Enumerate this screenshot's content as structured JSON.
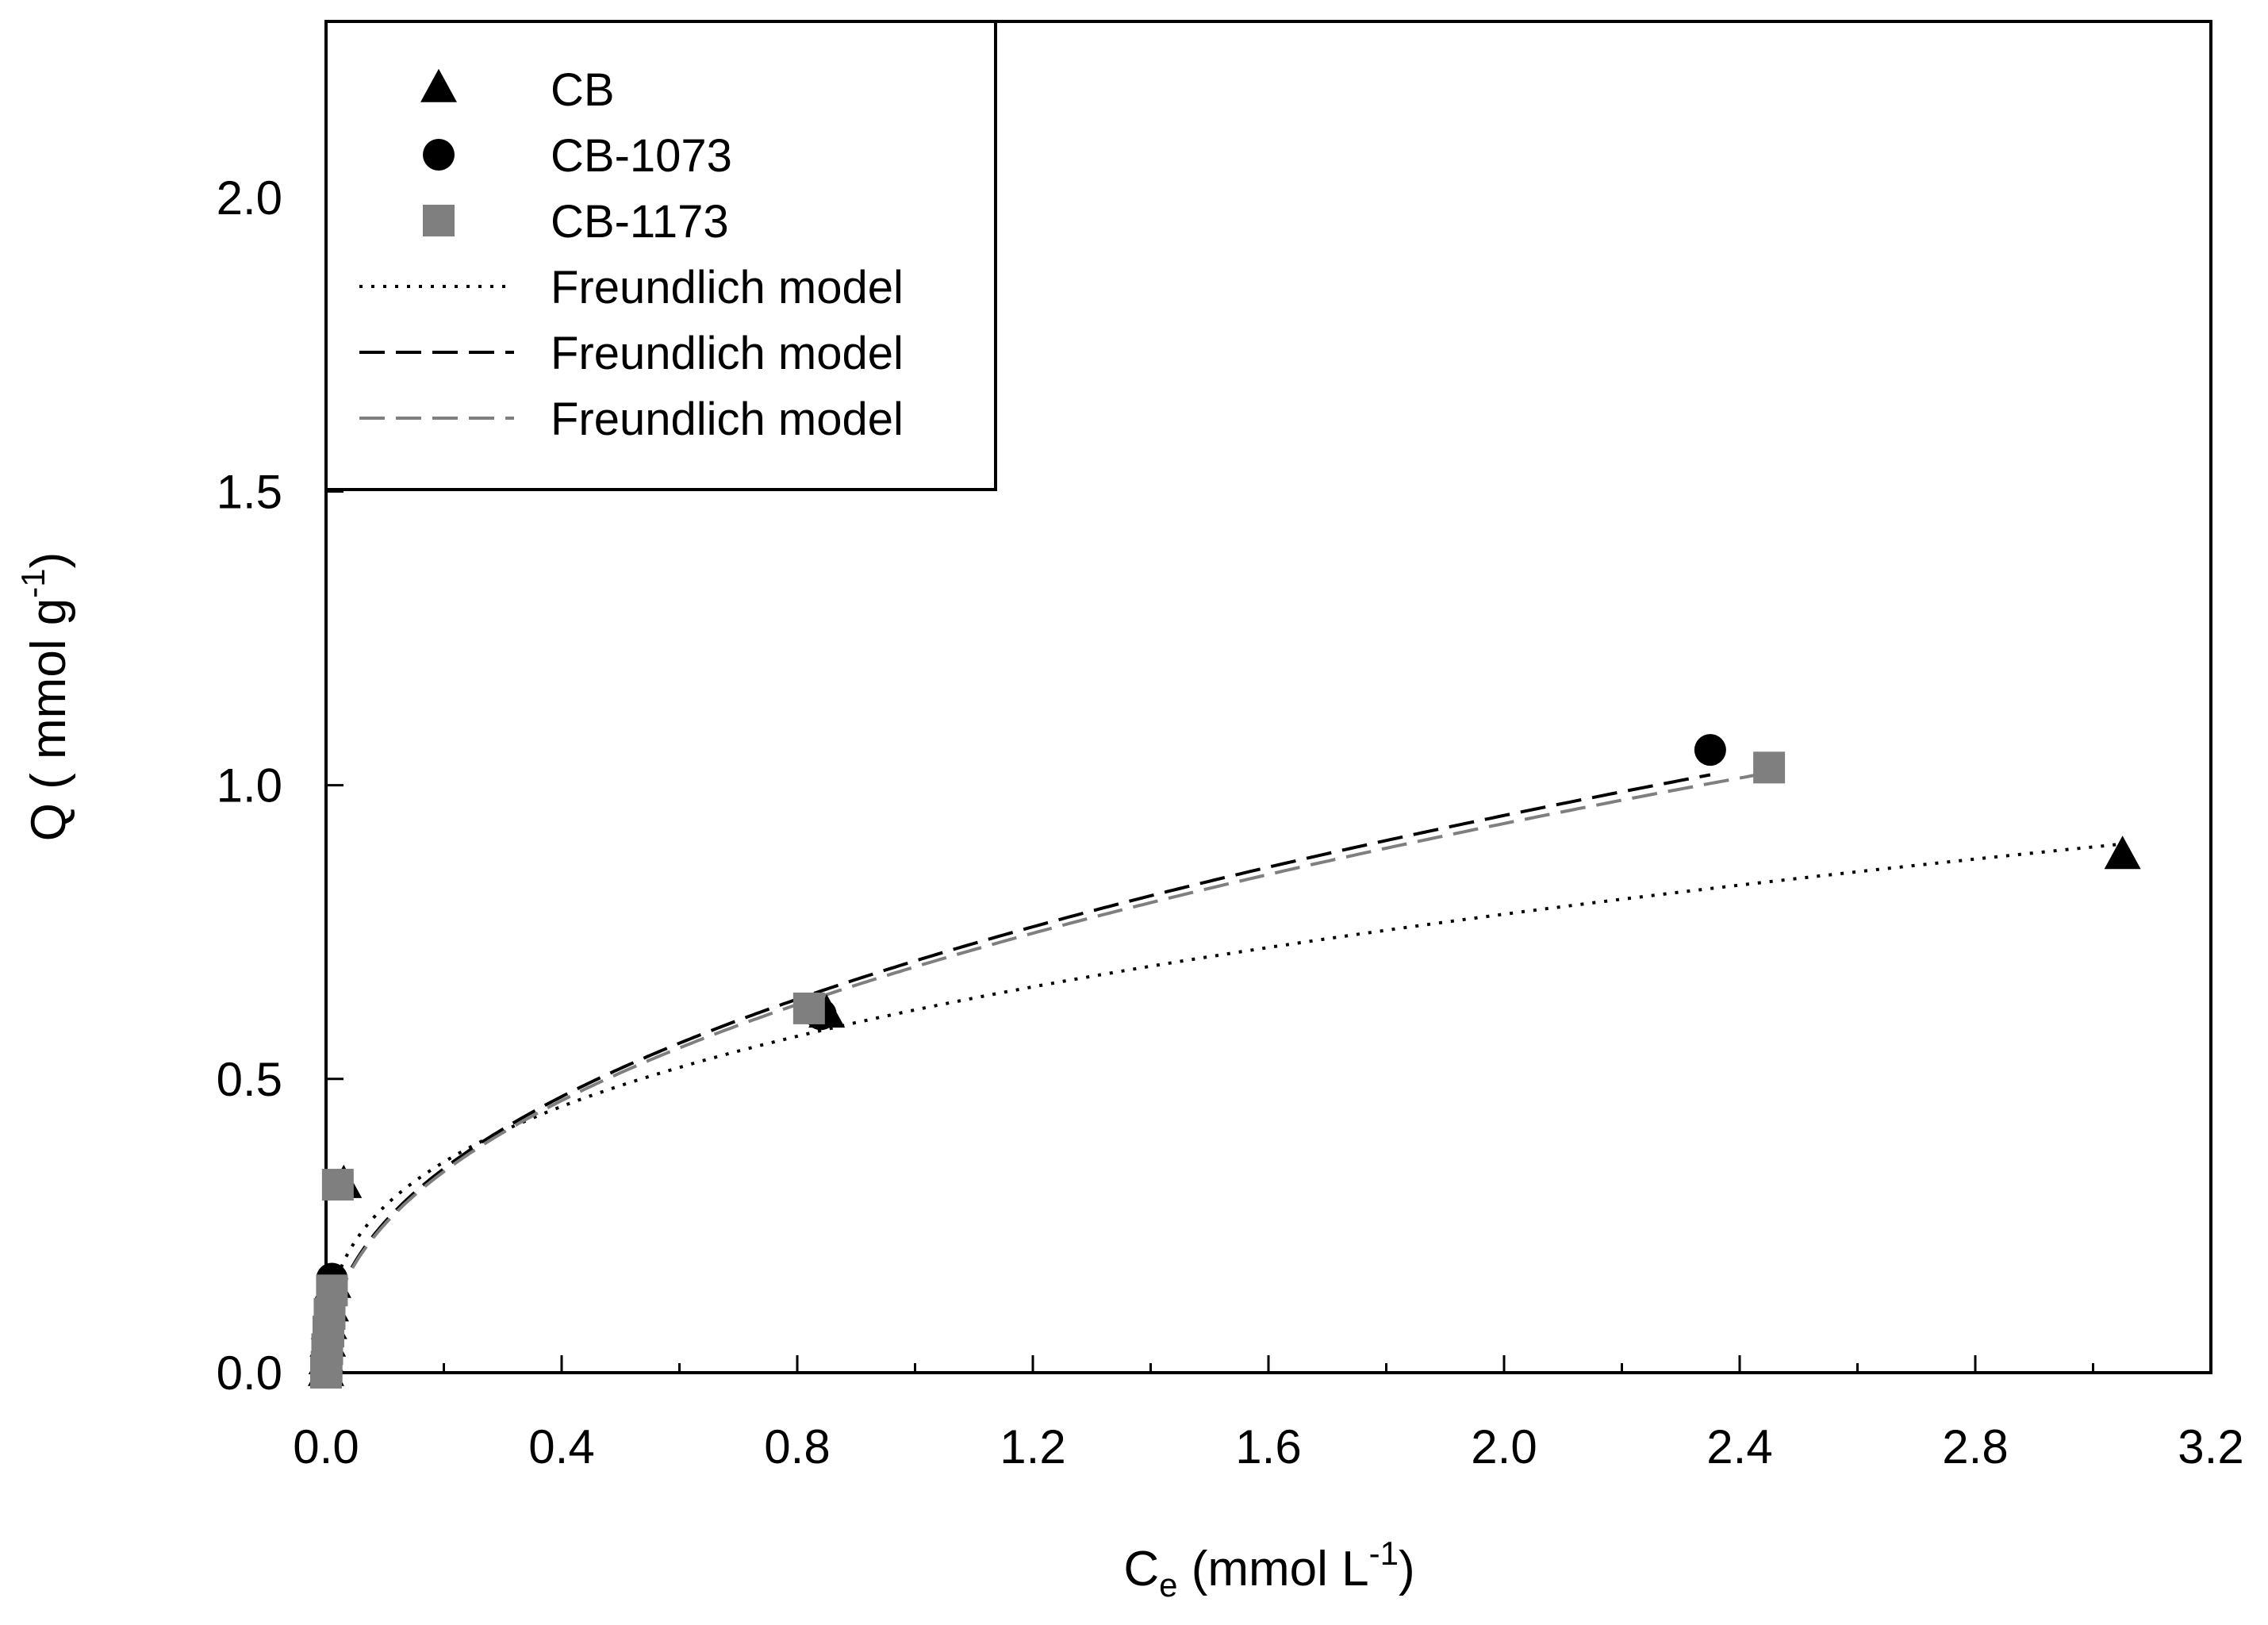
{
  "chart_data": {
    "type": "scatter",
    "title": "",
    "xlabel": {
      "main": "C",
      "sub": "e",
      "unit_open": " (mmol L",
      "sup": "-1",
      "unit_close": ")"
    },
    "ylabel": {
      "main": "Q ( mmol g",
      "sup": "-1",
      "close": ")"
    },
    "xlim": [
      0,
      3.2
    ],
    "ylim": [
      0,
      2.3
    ],
    "x_ticks": [
      0.0,
      0.4,
      0.8,
      1.2,
      1.6,
      2.0,
      2.4,
      2.8,
      3.2
    ],
    "x_tick_labels": [
      "0.0",
      "0.4",
      "0.8",
      "1.2",
      "1.6",
      "2.0",
      "2.4",
      "2.8",
      "3.2"
    ],
    "x_minor_ticks": [
      0.2,
      0.6,
      1.0,
      1.4,
      1.8,
      2.2,
      2.6,
      3.0
    ],
    "y_ticks": [
      0.0,
      0.5,
      1.0,
      1.5,
      2.0
    ],
    "y_tick_labels": [
      "0.0",
      "0.5",
      "1.0",
      "1.5",
      "2.0"
    ],
    "grid": false,
    "legend_position": "top-left",
    "colors": {
      "black": "#000000",
      "gray": "#7f7f7f"
    },
    "series": [
      {
        "name": "CB",
        "marker": "triangle",
        "color": "#000000",
        "x": [
          0.0,
          0.001,
          0.003,
          0.005,
          0.008,
          0.012,
          0.03,
          0.85,
          3.05
        ],
        "y": [
          0.0,
          0.02,
          0.05,
          0.08,
          0.11,
          0.15,
          0.32,
          0.61,
          0.88
        ]
      },
      {
        "name": "CB-1073",
        "marker": "circle",
        "color": "#000000",
        "x": [
          0.0,
          0.001,
          0.002,
          0.004,
          0.006,
          0.01,
          0.84,
          2.35
        ],
        "y": [
          0.0,
          0.02,
          0.05,
          0.08,
          0.11,
          0.16,
          0.61,
          1.06
        ]
      },
      {
        "name": "CB-1173",
        "marker": "square",
        "color": "#7f7f7f",
        "x": [
          0.0,
          0.001,
          0.002,
          0.004,
          0.006,
          0.01,
          0.02,
          0.82,
          2.45
        ],
        "y": [
          0.0,
          0.01,
          0.04,
          0.07,
          0.1,
          0.14,
          0.32,
          0.62,
          1.03
        ]
      }
    ],
    "models": [
      {
        "name": "Freundlich model",
        "style": "dotted",
        "color": "#000000",
        "K": 0.6175,
        "n_inv": 0.3377,
        "x_max": 3.05
      },
      {
        "name": "Freundlich model",
        "style": "dashed",
        "color": "#000000",
        "K": 0.7009,
        "n_inv": 0.4364,
        "x_max": 2.35
      },
      {
        "name": "Freundlich model",
        "style": "dashed",
        "color": "#7f7f7f",
        "K": 0.6908,
        "n_inv": 0.4363,
        "x_max": 2.45
      }
    ],
    "legend": [
      {
        "label": "CB",
        "kind": "marker",
        "marker": "triangle",
        "color": "#000000"
      },
      {
        "label": "CB-1073",
        "kind": "marker",
        "marker": "circle",
        "color": "#000000"
      },
      {
        "label": "CB-1173",
        "kind": "marker",
        "marker": "square",
        "color": "#7f7f7f"
      },
      {
        "label": "Freundlich model",
        "kind": "line",
        "style": "dotted",
        "color": "#000000"
      },
      {
        "label": "Freundlich model",
        "kind": "line",
        "style": "dashed",
        "color": "#000000"
      },
      {
        "label": "Freundlich model",
        "kind": "line",
        "style": "dashed",
        "color": "#7f7f7f"
      }
    ]
  }
}
